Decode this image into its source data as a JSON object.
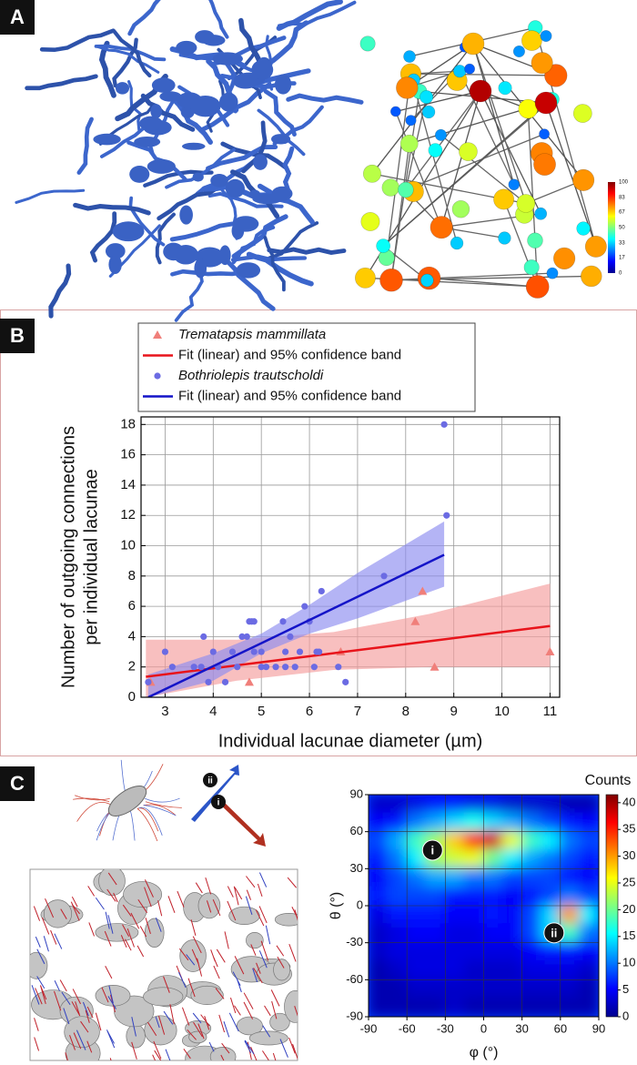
{
  "panel_labels": [
    "A",
    "B",
    "C"
  ],
  "panel_a": {
    "colorbar_ticks": [
      0,
      17,
      33,
      50,
      67,
      83,
      100
    ]
  },
  "panel_c": {
    "arrow_labels": [
      "ii",
      "i"
    ]
  },
  "chart_data": [
    {
      "type": "scatter",
      "xlabel": "Individual lacunae diameter (µm)",
      "ylabel": [
        "Number of outgoing connections",
        "per individual lacunae"
      ],
      "xlim": [
        2.5,
        11.2
      ],
      "ylim": [
        0,
        18.5
      ],
      "xticks": [
        3,
        4,
        5,
        6,
        7,
        8,
        9,
        10,
        11
      ],
      "yticks": [
        0,
        2,
        4,
        6,
        8,
        10,
        12,
        14,
        16,
        18
      ],
      "grid": true,
      "series": [
        {
          "name": "Trematapsis mammillata",
          "kind": "points",
          "marker": "triangle",
          "color": "#f07f7a",
          "x": [
            2.7,
            4.75,
            6.65,
            8.2,
            8.35,
            8.6,
            11
          ],
          "values": [
            1,
            1,
            3,
            5,
            7,
            2,
            3
          ]
        },
        {
          "name": "Fit (linear) and 95% confidence band",
          "kind": "fit",
          "color": "#e8141b",
          "band_color": "#f49c9c",
          "x": [
            2.6,
            4.5,
            6.5,
            8.5,
            11
          ],
          "values": [
            1.35,
            2.11,
            2.91,
            3.7,
            4.7
          ],
          "band_lower": [
            0,
            1.1,
            1.8,
            2,
            2
          ],
          "band_upper": [
            3.8,
            3.8,
            4.3,
            5.5,
            7.5
          ]
        },
        {
          "name": "Bothriolepis trautscholdi",
          "kind": "points",
          "marker": "circle",
          "color": "#6b6be3",
          "x": [
            2.65,
            3,
            3.15,
            3.6,
            3.75,
            3.8,
            3.9,
            4,
            4.1,
            4.25,
            4.4,
            4.5,
            4.6,
            4.7,
            4.75,
            4.8,
            4.85,
            4.85,
            5,
            5,
            5.1,
            5.3,
            5.45,
            5.5,
            5.5,
            5.6,
            5.7,
            5.8,
            5.9,
            6,
            6.1,
            6.15,
            6.2,
            6.25,
            6.6,
            6.75,
            7.55,
            8.8,
            8.85
          ],
          "values": [
            1,
            3,
            2,
            2,
            2,
            4,
            1,
            3,
            2,
            1,
            3,
            2,
            4,
            4,
            5,
            5,
            5,
            3,
            3,
            2,
            2,
            2,
            5,
            2,
            3,
            4,
            2,
            3,
            6,
            5,
            2,
            3,
            3,
            7,
            2,
            1,
            8,
            18,
            12
          ]
        },
        {
          "name": "Fit (linear) and 95% confidence band",
          "kind": "fit",
          "color": "#1414c8",
          "band_color": "#8c8cf0",
          "x": [
            2.65,
            4,
            5,
            6,
            7,
            8.8
          ],
          "values": [
            0,
            2.05,
            3.57,
            5.1,
            6.63,
            9.4
          ],
          "band_lower": [
            0,
            1.1,
            2.9,
            4.2,
            5.2,
            7.3
          ],
          "band_upper": [
            1.5,
            2.9,
            4.2,
            6.1,
            8.2,
            11.6
          ]
        }
      ]
    },
    {
      "type": "heatmap",
      "xlabel": "φ (°)",
      "ylabel": "θ (°)",
      "colorbar_label": "Counts",
      "xlim": [
        -90,
        90
      ],
      "ylim": [
        -90,
        90
      ],
      "zlim": [
        0,
        41.5
      ],
      "xticks": [
        -90,
        -60,
        -30,
        0,
        30,
        60,
        90
      ],
      "yticks": [
        -90,
        -60,
        -30,
        0,
        30,
        60,
        90
      ],
      "zticks": [
        0,
        5,
        10,
        15,
        20,
        25,
        30,
        35,
        40
      ],
      "grid": true,
      "x": [
        -82.5,
        -67.5,
        -52.5,
        -37.5,
        -22.5,
        -7.5,
        7.5,
        22.5,
        37.5,
        52.5,
        67.5,
        82.5
      ],
      "y": [
        82.5,
        67.5,
        52.5,
        37.5,
        22.5,
        7.5,
        -7.5,
        -22.5,
        -37.5,
        -52.5,
        -67.5,
        -82.5
      ],
      "values": [
        [
          3,
          3,
          4,
          5,
          5,
          4,
          4,
          3,
          3,
          3,
          2,
          2
        ],
        [
          5,
          6,
          10,
          12,
          14,
          16,
          14,
          12,
          10,
          8,
          6,
          5
        ],
        [
          8,
          12,
          18,
          22,
          28,
          35,
          38,
          25,
          18,
          15,
          10,
          8
        ],
        [
          6,
          10,
          15,
          22,
          24,
          25,
          20,
          15,
          12,
          10,
          8,
          6
        ],
        [
          5,
          8,
          10,
          12,
          12,
          10,
          10,
          8,
          8,
          8,
          6,
          5
        ],
        [
          6,
          8,
          8,
          8,
          6,
          6,
          6,
          5,
          6,
          8,
          10,
          8
        ],
        [
          4,
          6,
          6,
          6,
          5,
          5,
          6,
          5,
          8,
          14,
          30,
          15
        ],
        [
          3,
          4,
          5,
          5,
          4,
          4,
          5,
          5,
          8,
          14,
          18,
          10
        ],
        [
          3,
          4,
          4,
          4,
          4,
          4,
          4,
          4,
          5,
          6,
          6,
          5
        ],
        [
          2,
          3,
          4,
          4,
          4,
          3,
          3,
          3,
          4,
          4,
          4,
          3
        ],
        [
          2,
          2,
          3,
          3,
          3,
          3,
          3,
          3,
          3,
          3,
          3,
          2
        ],
        [
          2,
          2,
          2,
          2,
          3,
          2,
          2,
          2,
          2,
          2,
          2,
          2
        ]
      ],
      "annotations": [
        {
          "text": "i",
          "x": -40,
          "y": 45
        },
        {
          "text": "ii",
          "x": 55,
          "y": -22
        }
      ]
    }
  ]
}
